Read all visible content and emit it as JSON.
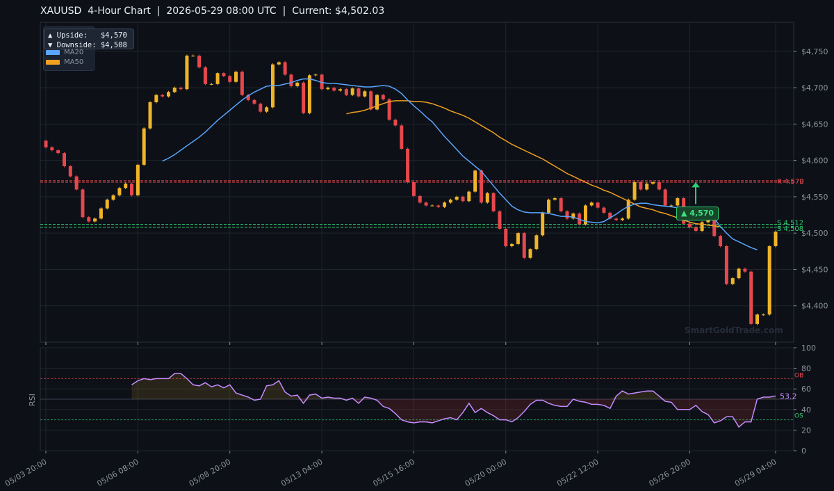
{
  "title": "XAUUSD  4-Hour Chart  |  2026-05-29 08:00 UTC  |  Current: $4,502.03",
  "info_box": {
    "upside": "▲ Upside:   $4,570",
    "downside": "▼ Downside: $4,508"
  },
  "legend": [
    {
      "label": "MA20",
      "color": "#58a6ff"
    },
    {
      "label": "MA50",
      "color": "#f0a020"
    }
  ],
  "target_badge": "▲ 4,570",
  "watermark": "SmartGoldTrade.com",
  "chart_data": [
    {
      "type": "candlestick",
      "ylim": [
        4350,
        4790
      ],
      "y_ticks": [
        "$4,400",
        "$4,450",
        "$4,500",
        "$4,550",
        "$4,600",
        "$4,650",
        "$4,700",
        "$4,750"
      ],
      "y_tick_values": [
        4400,
        4450,
        4500,
        4550,
        4600,
        4650,
        4700,
        4750
      ],
      "x_ticks": [
        "05/03 20:00",
        "05/06 08:00",
        "05/08 20:00",
        "05/13 04:00",
        "05/15 16:00",
        "05/20 00:00",
        "05/22 12:00",
        "05/26 20:00",
        "05/29 04:00"
      ],
      "x_tick_index": [
        0,
        15,
        30,
        45,
        60,
        75,
        90,
        105,
        119
      ],
      "colors": {
        "up": "#f0b429",
        "down": "#e5484d",
        "ma20": "#58a6ff",
        "ma50": "#f0a020",
        "resistance": "#e5484d",
        "support": "#2ecc71"
      },
      "closes": [
        4618,
        4614,
        4610,
        4592,
        4578,
        4560,
        4522,
        4516,
        4520,
        4534,
        4546,
        4552,
        4562,
        4568,
        4552,
        4594,
        4644,
        4680,
        4690,
        4688,
        4694,
        4700,
        4698,
        4744,
        4744,
        4728,
        4705,
        4705,
        4720,
        4716,
        4708,
        4722,
        4690,
        4683,
        4678,
        4667,
        4673,
        4732,
        4735,
        4718,
        4702,
        4707,
        4665,
        4717,
        4718,
        4698,
        4700,
        4696,
        4698,
        4690,
        4699,
        4688,
        4695,
        4670,
        4690,
        4684,
        4656,
        4648,
        4616,
        4570,
        4551,
        4542,
        4538,
        4538,
        4536,
        4542,
        4546,
        4550,
        4544,
        4557,
        4586,
        4542,
        4555,
        4530,
        4506,
        4482,
        4485,
        4500,
        4466,
        4478,
        4497,
        4528,
        4546,
        4548,
        4530,
        4520,
        4527,
        4512,
        4538,
        4542,
        4535,
        4528,
        4520,
        4518,
        4520,
        4546,
        4570,
        4560,
        4568,
        4570,
        4560,
        4538,
        4538,
        4548,
        4513,
        4508,
        4503,
        4515,
        4520,
        4496,
        4482,
        4430,
        4438,
        4451,
        4447,
        4375,
        4388,
        4388,
        4482,
        4502
      ],
      "resistance": [
        4570,
        4572
      ],
      "support": [
        4512,
        4508
      ],
      "resistance_labels": [
        "R 4,572",
        "R 4,570"
      ],
      "support_labels": [
        "S 4,512",
        "S 4,508"
      ],
      "ma20": [
        [
          19,
          4599
        ],
        [
          20,
          4603
        ],
        [
          21,
          4608
        ],
        [
          22,
          4614
        ],
        [
          23,
          4620
        ],
        [
          24,
          4626
        ],
        [
          25,
          4632
        ],
        [
          26,
          4639
        ],
        [
          27,
          4647
        ],
        [
          28,
          4655
        ],
        [
          29,
          4662
        ],
        [
          30,
          4669
        ],
        [
          31,
          4676
        ],
        [
          32,
          4683
        ],
        [
          33,
          4689
        ],
        [
          34,
          4694
        ],
        [
          35,
          4698
        ],
        [
          36,
          4702
        ],
        [
          37,
          4703
        ],
        [
          38,
          4703
        ],
        [
          39,
          4705
        ],
        [
          40,
          4707
        ],
        [
          41,
          4710
        ],
        [
          42,
          4712
        ],
        [
          43,
          4712
        ],
        [
          44,
          4710
        ],
        [
          45,
          4707
        ],
        [
          46,
          4706
        ],
        [
          47,
          4706
        ],
        [
          48,
          4705
        ],
        [
          49,
          4704
        ],
        [
          50,
          4703
        ],
        [
          51,
          4702
        ],
        [
          52,
          4701
        ],
        [
          53,
          4701
        ],
        [
          54,
          4702
        ],
        [
          55,
          4703
        ],
        [
          56,
          4702
        ],
        [
          57,
          4698
        ],
        [
          58,
          4692
        ],
        [
          59,
          4683
        ],
        [
          60,
          4675
        ],
        [
          61,
          4668
        ],
        [
          62,
          4660
        ],
        [
          63,
          4653
        ],
        [
          64,
          4643
        ],
        [
          65,
          4633
        ],
        [
          66,
          4624
        ],
        [
          67,
          4615
        ],
        [
          68,
          4606
        ],
        [
          69,
          4599
        ],
        [
          70,
          4592
        ],
        [
          71,
          4585
        ],
        [
          72,
          4575
        ],
        [
          73,
          4565
        ],
        [
          74,
          4555
        ],
        [
          75,
          4546
        ],
        [
          76,
          4537
        ],
        [
          77,
          4532
        ],
        [
          78,
          4529
        ],
        [
          79,
          4528
        ],
        [
          80,
          4528
        ],
        [
          81,
          4528
        ],
        [
          82,
          4527
        ],
        [
          83,
          4525
        ],
        [
          84,
          4523
        ],
        [
          85,
          4523
        ],
        [
          86,
          4522
        ],
        [
          87,
          4519
        ],
        [
          88,
          4516
        ],
        [
          89,
          4515
        ],
        [
          90,
          4514
        ],
        [
          91,
          4516
        ],
        [
          92,
          4521
        ],
        [
          93,
          4526
        ],
        [
          94,
          4532
        ],
        [
          95,
          4537
        ],
        [
          96,
          4540
        ],
        [
          97,
          4541
        ],
        [
          98,
          4541
        ],
        [
          99,
          4539
        ],
        [
          100,
          4538
        ],
        [
          101,
          4537
        ],
        [
          102,
          4536
        ],
        [
          103,
          4535
        ],
        [
          104,
          4534
        ],
        [
          105,
          4532
        ],
        [
          106,
          4530
        ],
        [
          107,
          4528
        ],
        [
          108,
          4524
        ],
        [
          109,
          4520
        ],
        [
          110,
          4509
        ],
        [
          111,
          4500
        ],
        [
          112,
          4492
        ],
        [
          113,
          4488
        ],
        [
          114,
          4484
        ],
        [
          115,
          4480
        ],
        [
          116,
          4477
        ]
      ],
      "ma50": [
        [
          49,
          4664
        ],
        [
          50,
          4666
        ],
        [
          51,
          4667
        ],
        [
          52,
          4669
        ],
        [
          53,
          4672
        ],
        [
          54,
          4675
        ],
        [
          55,
          4678
        ],
        [
          56,
          4681
        ],
        [
          57,
          4682
        ],
        [
          58,
          4682
        ],
        [
          59,
          4682
        ],
        [
          60,
          4681
        ],
        [
          61,
          4681
        ],
        [
          62,
          4680
        ],
        [
          63,
          4678
        ],
        [
          64,
          4675
        ],
        [
          65,
          4672
        ],
        [
          66,
          4668
        ],
        [
          67,
          4665
        ],
        [
          68,
          4662
        ],
        [
          69,
          4658
        ],
        [
          70,
          4653
        ],
        [
          71,
          4648
        ],
        [
          72,
          4643
        ],
        [
          73,
          4638
        ],
        [
          74,
          4632
        ],
        [
          75,
          4627
        ],
        [
          76,
          4622
        ],
        [
          77,
          4618
        ],
        [
          78,
          4614
        ],
        [
          79,
          4610
        ],
        [
          80,
          4606
        ],
        [
          81,
          4602
        ],
        [
          82,
          4597
        ],
        [
          83,
          4592
        ],
        [
          84,
          4587
        ],
        [
          85,
          4582
        ],
        [
          86,
          4578
        ],
        [
          87,
          4574
        ],
        [
          88,
          4570
        ],
        [
          89,
          4566
        ],
        [
          90,
          4563
        ],
        [
          91,
          4559
        ],
        [
          92,
          4556
        ],
        [
          93,
          4552
        ],
        [
          94,
          4548
        ],
        [
          95,
          4544
        ],
        [
          96,
          4540
        ],
        [
          97,
          4536
        ],
        [
          98,
          4534
        ],
        [
          99,
          4532
        ],
        [
          100,
          4529
        ],
        [
          101,
          4527
        ],
        [
          102,
          4524
        ],
        [
          103,
          4521
        ],
        [
          104,
          4518
        ],
        [
          105,
          4515
        ],
        [
          106,
          4513
        ],
        [
          107,
          4512
        ],
        [
          108,
          4511
        ],
        [
          109,
          4510
        ],
        [
          110,
          4509
        ]
      ]
    },
    {
      "type": "line",
      "ylabel": "RSI",
      "ylim": [
        0,
        100
      ],
      "y_ticks": [
        "0",
        "20",
        "40",
        "60",
        "80",
        "100"
      ],
      "y_tick_values": [
        0,
        20,
        40,
        60,
        80,
        100
      ],
      "ob": 70,
      "os": 30,
      "ob_label": "OB",
      "os_label": "OS",
      "last_value_label": "53.2",
      "start_index": 14,
      "values": [
        64,
        68,
        70,
        69,
        70,
        70,
        70,
        75,
        75,
        70,
        64,
        63,
        66,
        62,
        64,
        61,
        64,
        56,
        54,
        52,
        49,
        50,
        63,
        64,
        68,
        57,
        53,
        54,
        46,
        54,
        55,
        51,
        52,
        51,
        51,
        49,
        51,
        46,
        52,
        51,
        49,
        43,
        41,
        36,
        30,
        28,
        27,
        28,
        28,
        27,
        29,
        31,
        32,
        30,
        37,
        46,
        37,
        41,
        37,
        34,
        30,
        30,
        28,
        32,
        38,
        45,
        49,
        49,
        46,
        44,
        43,
        43,
        50,
        48,
        47,
        45,
        45,
        44,
        41,
        53,
        58,
        55,
        56,
        57,
        58,
        58,
        53,
        48,
        47,
        40,
        40,
        40,
        44,
        38,
        35,
        27,
        29,
        33,
        33,
        23,
        28,
        28,
        50,
        52,
        52,
        53.2
      ]
    }
  ]
}
